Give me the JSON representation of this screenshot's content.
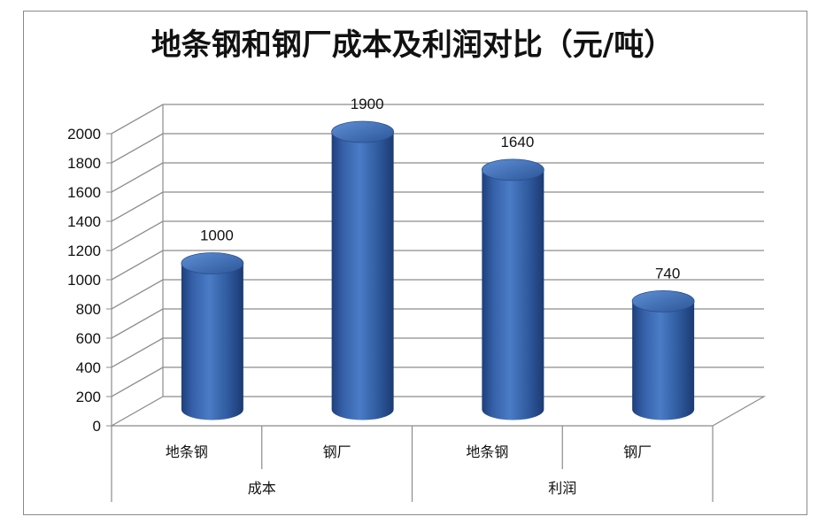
{
  "chart_data": {
    "type": "bar",
    "title": "地条钢和钢厂成本及利润对比（元/吨）",
    "groups": [
      {
        "label": "成本",
        "categories": [
          "地条钢",
          "钢厂"
        ]
      },
      {
        "label": "利润",
        "categories": [
          "地条钢",
          "钢厂"
        ]
      }
    ],
    "categories": [
      "地条钢",
      "钢厂",
      "地条钢",
      "钢厂"
    ],
    "values": [
      1000,
      1900,
      1640,
      740
    ],
    "data_labels": [
      "1000",
      "1900",
      "1640",
      "740"
    ],
    "ylim": [
      0,
      2000
    ],
    "yticks": [
      0,
      200,
      400,
      600,
      800,
      1000,
      1200,
      1400,
      1600,
      1800,
      2000
    ],
    "grid": true,
    "style": "3d-cylinder",
    "bar_color": "#3a66b0",
    "legend": "none"
  }
}
